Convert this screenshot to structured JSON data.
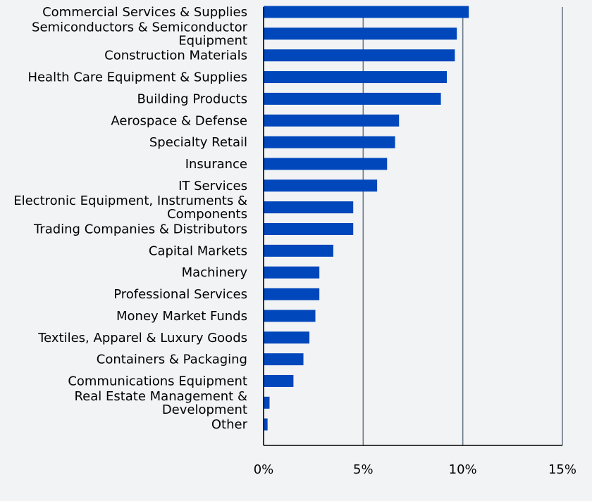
{
  "chart_data": {
    "type": "bar",
    "orientation": "horizontal",
    "categories": [
      "Commercial Services & Supplies",
      "Semiconductors & Semiconductor Equipment",
      "Construction Materials",
      "Health Care Equipment & Supplies",
      "Building Products",
      "Aerospace & Defense",
      "Specialty Retail",
      "Insurance",
      "IT Services",
      "Electronic Equipment, Instruments & Components",
      "Trading Companies & Distributors",
      "Capital Markets",
      "Machinery",
      "Professional Services",
      "Money Market Funds",
      "Textiles, Apparel & Luxury Goods",
      "Containers & Packaging",
      "Communications Equipment",
      "Real Estate Management & Development",
      "Other"
    ],
    "category_label_lines": [
      [
        "Commercial Services & Supplies"
      ],
      [
        "Semiconductors & Semiconductor",
        "Equipment"
      ],
      [
        "Construction Materials"
      ],
      [
        "Health Care Equipment & Supplies"
      ],
      [
        "Building Products"
      ],
      [
        "Aerospace & Defense"
      ],
      [
        "Specialty Retail"
      ],
      [
        "Insurance"
      ],
      [
        "IT Services"
      ],
      [
        "Electronic Equipment, Instruments &",
        "Components"
      ],
      [
        "Trading Companies & Distributors"
      ],
      [
        "Capital Markets"
      ],
      [
        "Machinery"
      ],
      [
        "Professional Services"
      ],
      [
        "Money Market Funds"
      ],
      [
        "Textiles, Apparel & Luxury Goods"
      ],
      [
        "Containers & Packaging"
      ],
      [
        "Communications Equipment"
      ],
      [
        "Real Estate Management &",
        "Development"
      ],
      [
        "Other"
      ]
    ],
    "values": [
      10.3,
      9.7,
      9.6,
      9.2,
      8.9,
      6.8,
      6.6,
      6.2,
      5.7,
      4.5,
      4.5,
      3.5,
      2.8,
      2.8,
      2.6,
      2.3,
      2.0,
      1.5,
      0.3,
      0.2
    ],
    "xlim": [
      0,
      15
    ],
    "xticks": [
      0,
      5,
      10,
      15
    ],
    "xtick_labels": [
      "0%",
      "5%",
      "10%",
      "15%"
    ],
    "title": "",
    "xlabel": "",
    "ylabel": "",
    "grid": "vertical",
    "legend": "none",
    "colors": {
      "bar": "#0047bb",
      "grid": "#6b7a89",
      "axis": "#000000",
      "background": "#f1f3f5"
    }
  }
}
